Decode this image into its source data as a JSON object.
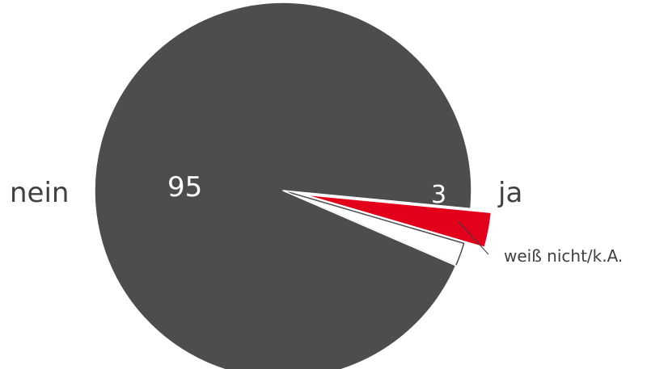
{
  "chart_data": {
    "type": "pie",
    "slices": [
      {
        "label": "nein",
        "value": 95,
        "value_label": "95",
        "color": "#4d4d4d"
      },
      {
        "label": "ja",
        "value": 3,
        "value_label": "3",
        "color": "#e2001a"
      },
      {
        "label": "weiß nicht/k.A.",
        "value": 2,
        "value_label": "",
        "color": "#ffffff"
      }
    ],
    "exploded_slice": "ja",
    "legend": "none",
    "title": ""
  }
}
